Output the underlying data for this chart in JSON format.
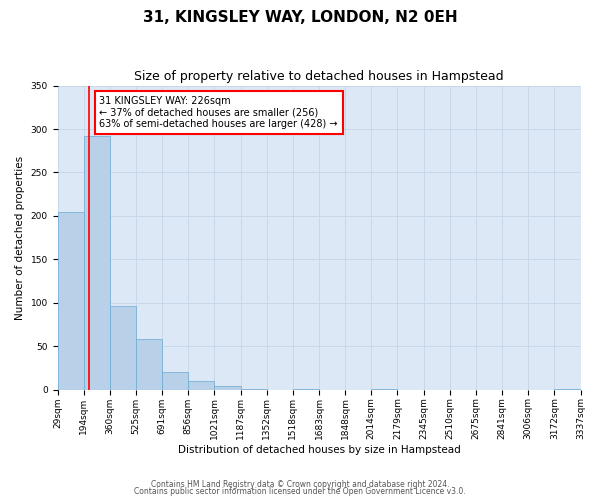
{
  "title": "31, KINGSLEY WAY, LONDON, N2 0EH",
  "subtitle": "Size of property relative to detached houses in Hampstead",
  "xlabel": "Distribution of detached houses by size in Hampstead",
  "ylabel": "Number of detached properties",
  "bar_values": [
    204,
    292,
    96,
    58,
    20,
    10,
    4,
    1,
    0,
    1,
    0,
    0,
    1,
    0,
    0,
    0,
    0,
    0,
    0,
    1
  ],
  "bin_labels": [
    "29sqm",
    "194sqm",
    "360sqm",
    "525sqm",
    "691sqm",
    "856sqm",
    "1021sqm",
    "1187sqm",
    "1352sqm",
    "1518sqm",
    "1683sqm",
    "1848sqm",
    "2014sqm",
    "2179sqm",
    "2345sqm",
    "2510sqm",
    "2675sqm",
    "2841sqm",
    "3006sqm",
    "3172sqm",
    "3337sqm"
  ],
  "bar_color": "#b8d0e8",
  "bar_edge_color": "#6aaad4",
  "bar_edge_width": 0.5,
  "grid_color": "#c8d8ea",
  "background_color": "#dce8f5",
  "annotation_text": "31 KINGSLEY WAY: 226sqm\n← 37% of detached houses are smaller (256)\n63% of semi-detached houses are larger (428) →",
  "annotation_box_color": "white",
  "annotation_box_edge_color": "red",
  "ylim": [
    0,
    350
  ],
  "yticks": [
    0,
    50,
    100,
    150,
    200,
    250,
    300,
    350
  ],
  "footer_line1": "Contains HM Land Registry data © Crown copyright and database right 2024.",
  "footer_line2": "Contains public sector information licensed under the Open Government Licence v3.0.",
  "title_fontsize": 11,
  "subtitle_fontsize": 9,
  "axis_label_fontsize": 7.5,
  "tick_fontsize": 6.5,
  "annotation_fontsize": 7,
  "footer_fontsize": 5.5
}
